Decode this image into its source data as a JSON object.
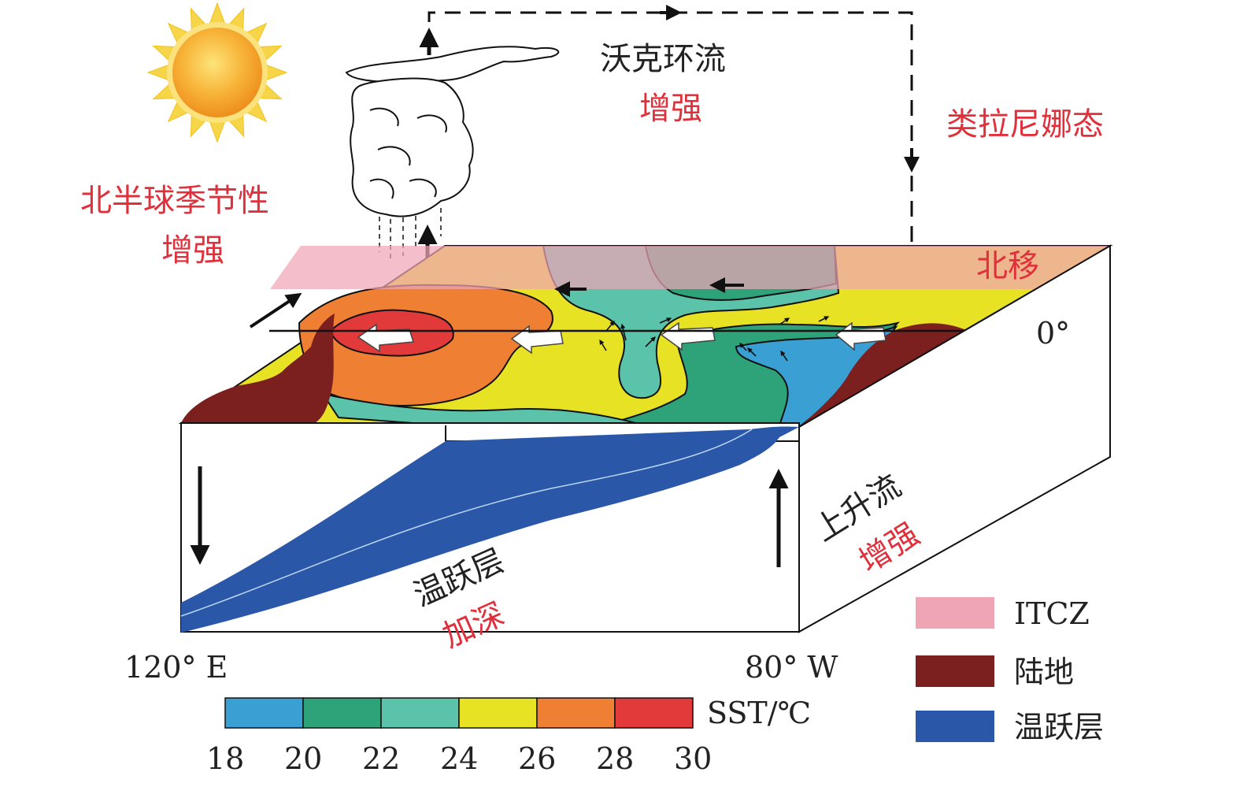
{
  "colors": {
    "land": "#7b1f1f",
    "itcz": "#f0a5b5",
    "thermocline": "#2a57a8",
    "label_red": "#e0303c",
    "label_black": "#222222",
    "sun": "#f5a623",
    "sst_18_20": "#3aa0d4",
    "sst_20_22": "#2ea37a",
    "sst_22_24": "#5cc3ab",
    "sst_24_26": "#e8e224",
    "sst_26_28": "#ef7f33",
    "sst_28_30": "#e23a3a"
  },
  "labels": {
    "walker": "沃克环流",
    "walker_change": "增强",
    "la_nina": "类拉尼娜态",
    "seasonality": "北半球季节性",
    "seasonality_change": "增强",
    "itcz_shift": "北移",
    "equator": "0°",
    "upwelling": "上升流",
    "upwelling_change": "增强",
    "thermocline": "温跃层",
    "thermocline_change": "加深",
    "west_lon": "120° E",
    "east_lon": "80° W"
  },
  "colorbar": {
    "title": "SST/℃",
    "ticks": [
      "18",
      "20",
      "22",
      "24",
      "26",
      "28",
      "30"
    ]
  },
  "legend": {
    "items": [
      {
        "label": "ITCZ",
        "color": "#f0a5b5"
      },
      {
        "label": "陆地",
        "color": "#7b1f1f"
      },
      {
        "label": "温跃层",
        "color": "#2a57a8"
      }
    ]
  },
  "icons": {
    "sun": "sun-icon",
    "cloud": "convective-cloud-icon"
  }
}
